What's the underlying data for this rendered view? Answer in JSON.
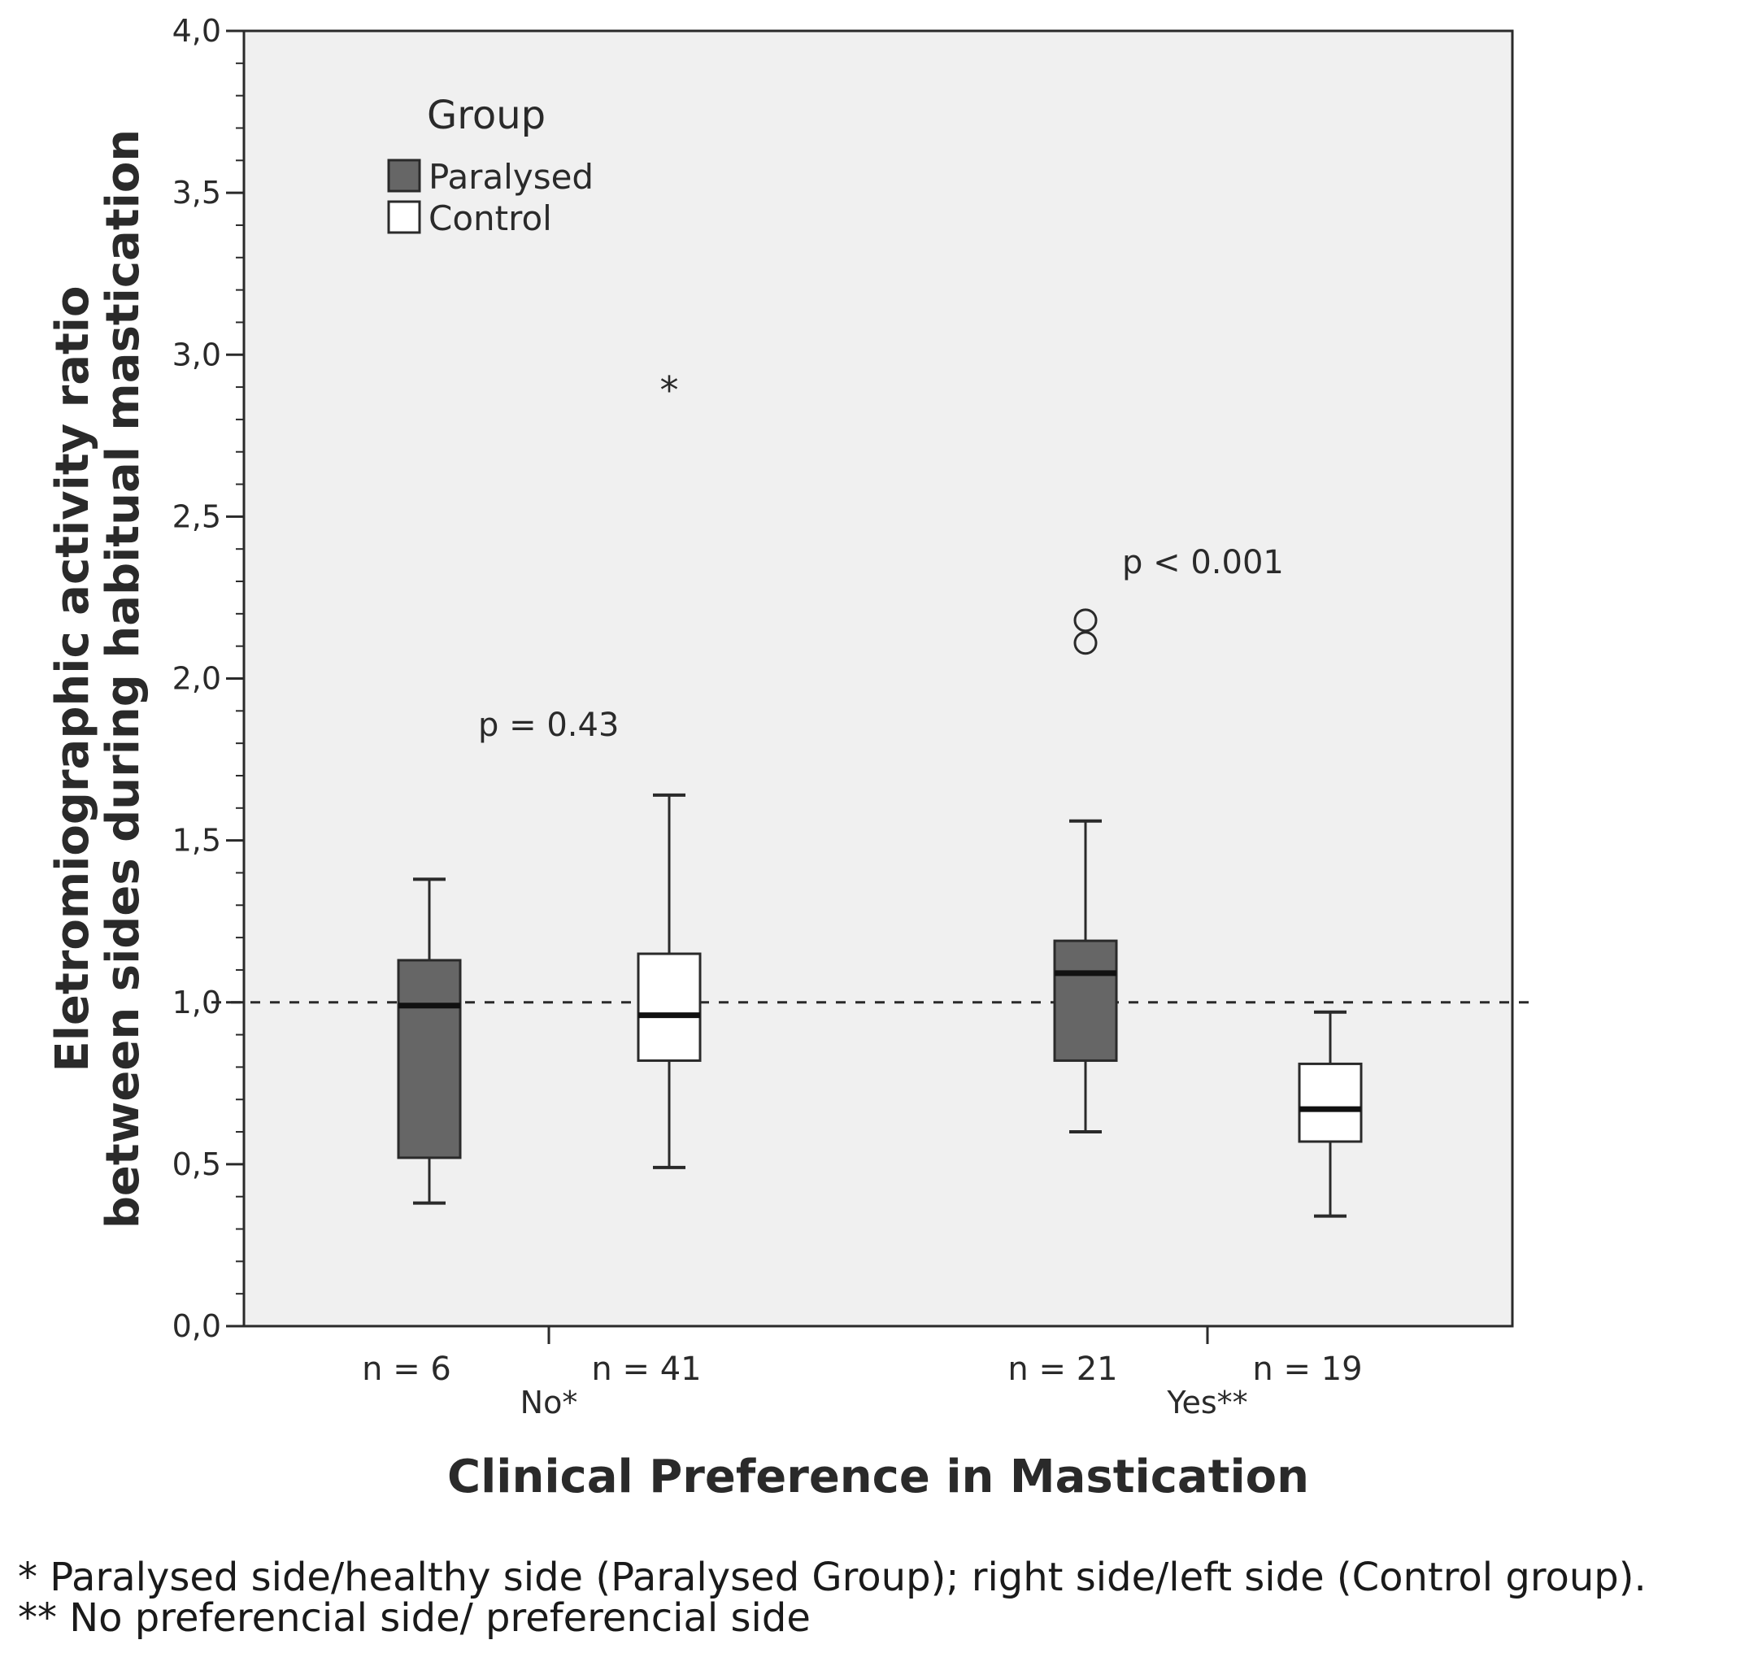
{
  "chart_data": {
    "type": "boxplot",
    "ylabel_line1": "Eletromiographic activity ratio",
    "ylabel_line2": "between sides during habitual mastication",
    "xlabel": "Clinical Preference in Mastication",
    "ylim": [
      0,
      4
    ],
    "yticks": [
      "0,0",
      "0,5",
      "1,0",
      "1,5",
      "2,0",
      "2,5",
      "3,0",
      "3,5",
      "4,0"
    ],
    "reference_line": 1.0,
    "legend": {
      "title": "Group",
      "items": [
        {
          "name": "Paralysed",
          "color": "#666666"
        },
        {
          "name": "Control",
          "color": "#ffffff"
        }
      ]
    },
    "categories": [
      {
        "label": "No*",
        "p_text": "p = 0.43"
      },
      {
        "label": "Yes**",
        "p_text": "p < 0.001"
      }
    ],
    "boxes": [
      {
        "category": "No*",
        "group": "Paralysed",
        "n_label": "n = 6",
        "whisker_low": 0.38,
        "q1": 0.52,
        "median": 0.99,
        "q3": 1.13,
        "whisker_high": 1.38,
        "outliers": [],
        "extremes": []
      },
      {
        "category": "No*",
        "group": "Control",
        "n_label": "n = 41",
        "whisker_low": 0.49,
        "q1": 0.82,
        "median": 0.96,
        "q3": 1.15,
        "whisker_high": 1.64,
        "outliers": [],
        "extremes": [
          2.91
        ]
      },
      {
        "category": "Yes**",
        "group": "Paralysed",
        "n_label": "n = 21",
        "whisker_low": 0.6,
        "q1": 0.82,
        "median": 1.09,
        "q3": 1.19,
        "whisker_high": 1.56,
        "outliers": [
          2.18,
          2.11
        ],
        "extremes": []
      },
      {
        "category": "Yes**",
        "group": "Control",
        "n_label": "n = 19",
        "whisker_low": 0.34,
        "q1": 0.57,
        "median": 0.67,
        "q3": 0.81,
        "whisker_high": 0.97,
        "outliers": [],
        "extremes": []
      }
    ]
  },
  "footnotes": {
    "line1": "* Paralysed side/healthy side (Paralysed Group);  right side/left side (Control group).",
    "line2": "** No preferencial side/ preferencial side"
  }
}
